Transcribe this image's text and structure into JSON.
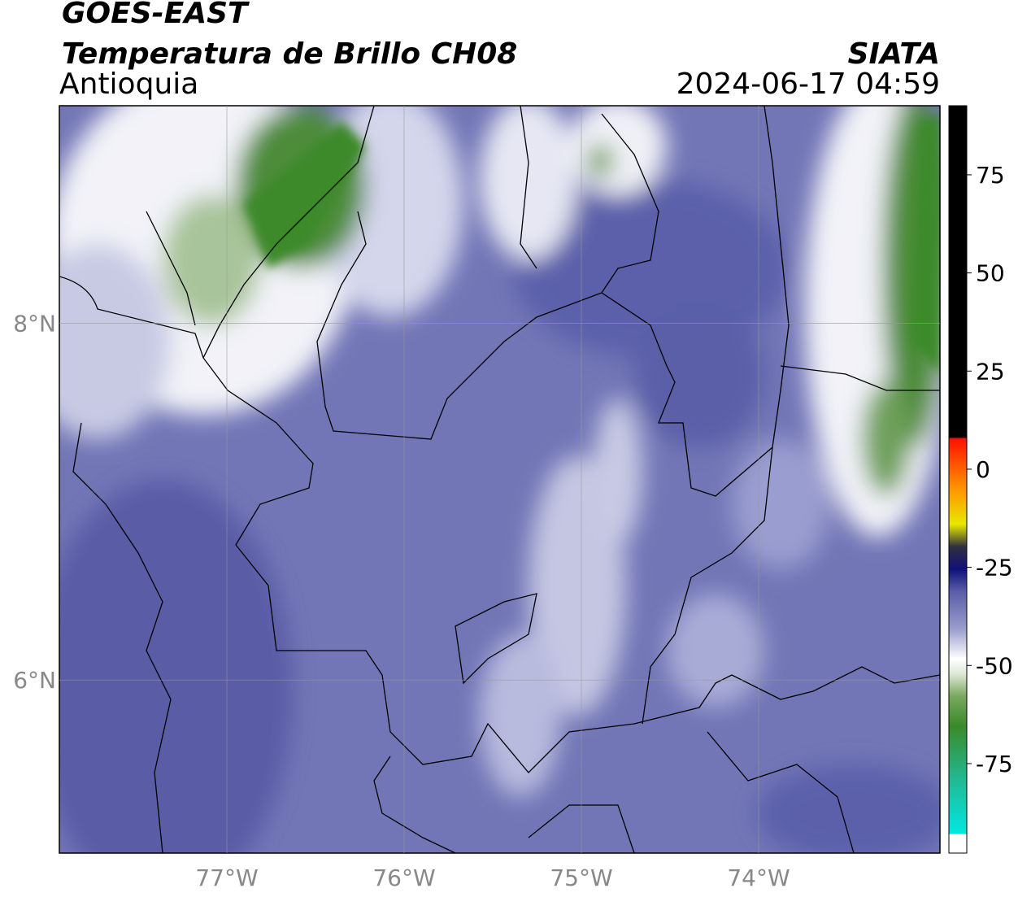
{
  "header": {
    "title": "GOES-EAST",
    "subtitle": "Temperatura de Brillo CH08",
    "source": "SIATA",
    "region": "Antioquia",
    "datetime": "2024-06-17 04:59"
  },
  "map": {
    "xlim": [
      -77.945,
      -72.977
    ],
    "ylim": [
      5.03,
      9.22
    ],
    "xticks": [
      {
        "value": -77,
        "label": "77°W"
      },
      {
        "value": -76,
        "label": "76°W"
      },
      {
        "value": -75,
        "label": "75°W"
      },
      {
        "value": -74,
        "label": "74°W"
      }
    ],
    "yticks": [
      {
        "value": 8,
        "label": "8°N"
      },
      {
        "value": 6,
        "label": "6°N"
      }
    ],
    "grid": true
  },
  "colorbar": {
    "range": [
      -97.8,
      92.6
    ],
    "ticks": [
      75,
      50,
      25,
      0,
      -25,
      -50,
      -75
    ]
  }
}
